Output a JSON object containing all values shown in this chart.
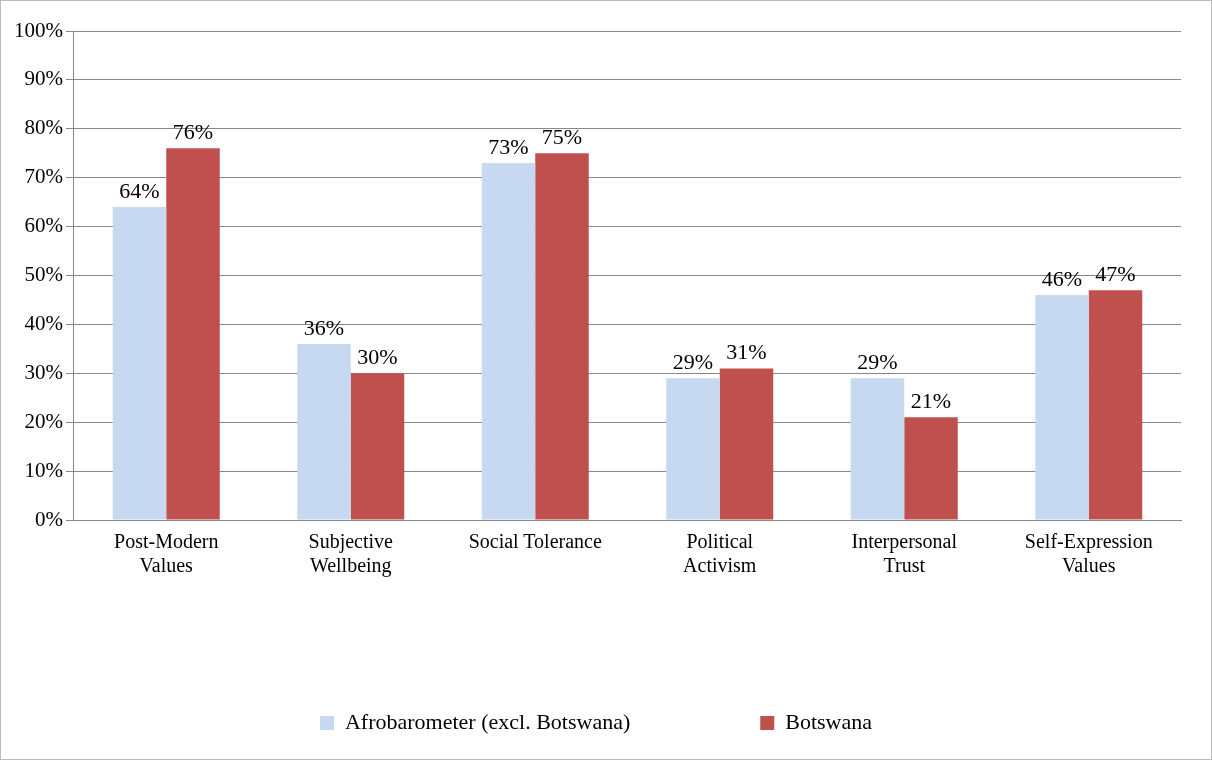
{
  "chart_data": {
    "type": "bar",
    "categories": [
      "Post-Modern Values",
      "Subjective Wellbeing",
      "Social Tolerance",
      "Political Activism",
      "Interpersonal Trust",
      "Self-Expression Values"
    ],
    "series": [
      {
        "name": "Afrobarometer (excl. Botswana)",
        "color": "#c6d9f1",
        "values": [
          64,
          36,
          73,
          29,
          29,
          46
        ],
        "value_labels": [
          "64%",
          "36%",
          "73%",
          "29%",
          "29%",
          "46%"
        ]
      },
      {
        "name": "Botswana",
        "color": "#c0504d",
        "values": [
          76,
          30,
          75,
          31,
          21,
          47
        ],
        "value_labels": [
          "76%",
          "30%",
          "75%",
          "31%",
          "21%",
          "47%"
        ]
      }
    ],
    "ylim": [
      0,
      100
    ],
    "yticks": [
      {
        "value": 0,
        "label": "0%"
      },
      {
        "value": 10,
        "label": "10%"
      },
      {
        "value": 20,
        "label": "20%"
      },
      {
        "value": 30,
        "label": "30%"
      },
      {
        "value": 40,
        "label": "40%"
      },
      {
        "value": 50,
        "label": "50%"
      },
      {
        "value": 60,
        "label": "60%"
      },
      {
        "value": 70,
        "label": "70%"
      },
      {
        "value": 80,
        "label": "80%"
      },
      {
        "value": 90,
        "label": "90%"
      },
      {
        "value": 100,
        "label": "100%"
      }
    ],
    "grid": "y",
    "legend": "bottom"
  }
}
